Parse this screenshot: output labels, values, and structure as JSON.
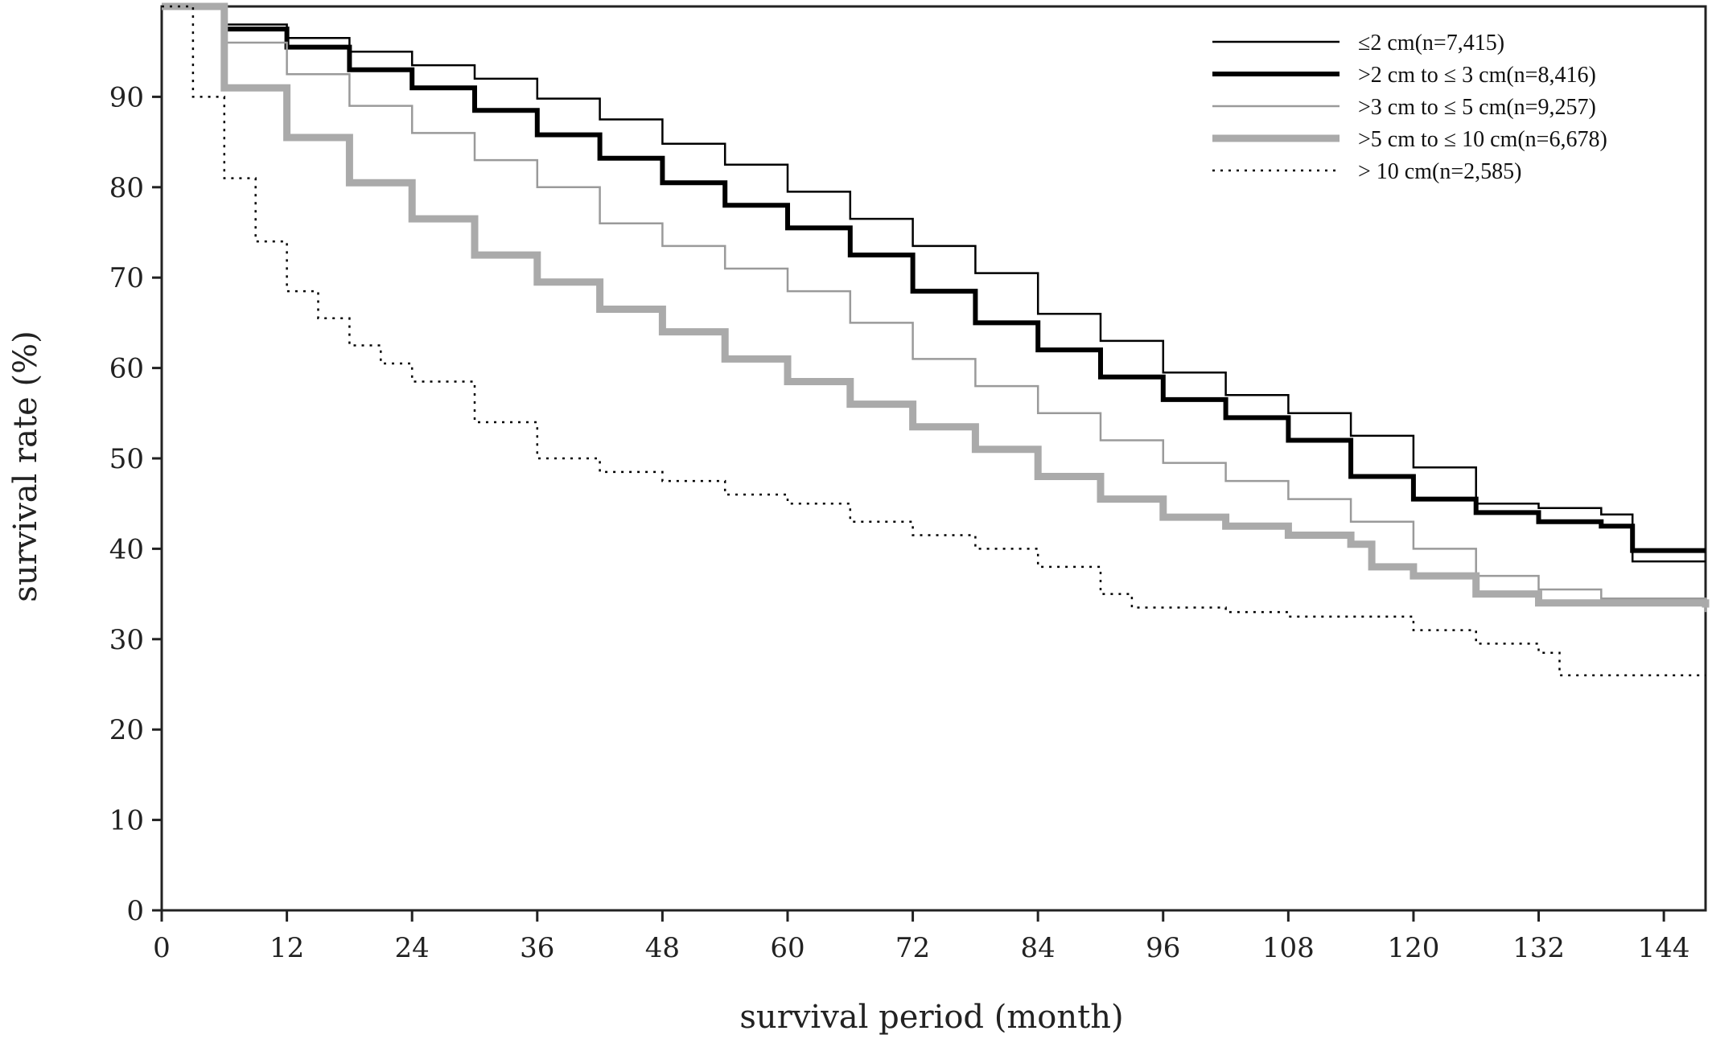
{
  "chart_data": {
    "type": "line",
    "title": "",
    "xlabel": "survival period (month)",
    "ylabel": "survival rate (%)",
    "xlim": [
      0,
      148
    ],
    "ylim": [
      0,
      100
    ],
    "xticks": [
      "0",
      "12",
      "24",
      "36",
      "48",
      "60",
      "72",
      "84",
      "96",
      "108",
      "120",
      "132",
      "144"
    ],
    "yticks": [
      "0",
      "10",
      "20",
      "30",
      "40",
      "50",
      "60",
      "70",
      "80",
      "90"
    ],
    "grid": false,
    "legend_position": "top-right",
    "series": [
      {
        "name": "≤2 cm(n=7,415)",
        "color": "#000000",
        "style": "thin-solid",
        "x": [
          0,
          6,
          12,
          18,
          24,
          30,
          36,
          42,
          48,
          54,
          60,
          66,
          72,
          78,
          84,
          90,
          96,
          102,
          108,
          114,
          120,
          126,
          132,
          138,
          141,
          148
        ],
        "y": [
          100,
          98,
          96.5,
          95,
          93.5,
          92,
          89.8,
          87.5,
          84.8,
          82.5,
          79.5,
          76.5,
          73.5,
          70.5,
          66,
          63,
          59.5,
          57,
          55,
          52.5,
          49,
          45,
          44.5,
          43.8,
          38.6,
          38.6
        ]
      },
      {
        "name": ">2 cm to ≤ 3 cm(n=8,416)",
        "color": "#000000",
        "style": "thick-solid",
        "x": [
          0,
          6,
          12,
          18,
          24,
          30,
          36,
          42,
          48,
          54,
          60,
          66,
          72,
          78,
          84,
          90,
          96,
          102,
          108,
          114,
          120,
          126,
          132,
          138,
          141,
          148
        ],
        "y": [
          100,
          97.5,
          95.5,
          93,
          91,
          88.5,
          85.8,
          83.2,
          80.5,
          78,
          75.5,
          72.5,
          68.5,
          65,
          62,
          59,
          56.5,
          54.5,
          52,
          48,
          45.5,
          44,
          43,
          42.5,
          39.8,
          39.8
        ]
      },
      {
        "name": ">3 cm to ≤ 5 cm(n=9,257)",
        "color": "#9a9a9a",
        "style": "thin-solid",
        "x": [
          0,
          6,
          12,
          18,
          24,
          30,
          36,
          42,
          48,
          54,
          60,
          66,
          72,
          78,
          84,
          90,
          96,
          102,
          108,
          114,
          120,
          126,
          132,
          138,
          148
        ],
        "y": [
          100,
          96,
          92.5,
          89,
          86,
          83,
          80,
          76,
          73.5,
          71,
          68.5,
          65,
          61,
          58,
          55,
          52,
          49.5,
          47.5,
          45.5,
          43,
          40,
          37,
          35.5,
          34.5,
          33
        ]
      },
      {
        "name": ">5 cm to ≤ 10 cm(n=6,678)",
        "color": "#aaaaaa",
        "style": "very-thick-solid",
        "x": [
          0,
          6,
          12,
          18,
          24,
          30,
          36,
          42,
          48,
          54,
          60,
          66,
          72,
          78,
          84,
          90,
          96,
          102,
          108,
          114,
          116,
          120,
          126,
          132,
          148
        ],
        "y": [
          100,
          91,
          85.5,
          80.5,
          76.5,
          72.5,
          69.5,
          66.5,
          64,
          61,
          58.5,
          56,
          53.5,
          51,
          48,
          45.5,
          43.5,
          42.5,
          41.5,
          40.5,
          38,
          37,
          35,
          34,
          33.5
        ]
      },
      {
        "name": "> 10 cm(n=2,585)",
        "color": "#000000",
        "style": "dotted",
        "x": [
          0,
          3,
          6,
          9,
          12,
          15,
          18,
          21,
          24,
          30,
          36,
          42,
          48,
          54,
          60,
          66,
          72,
          78,
          84,
          90,
          93,
          96,
          102,
          108,
          114,
          120,
          126,
          132,
          134,
          148
        ],
        "y": [
          100,
          90,
          81,
          74,
          68.5,
          65.5,
          62.5,
          60.5,
          58.5,
          54,
          50,
          48.5,
          47.5,
          46,
          45,
          43,
          41.5,
          40,
          38,
          35,
          33.5,
          33.5,
          33,
          32.5,
          32.5,
          31,
          29.5,
          28.5,
          26,
          26
        ]
      }
    ]
  }
}
